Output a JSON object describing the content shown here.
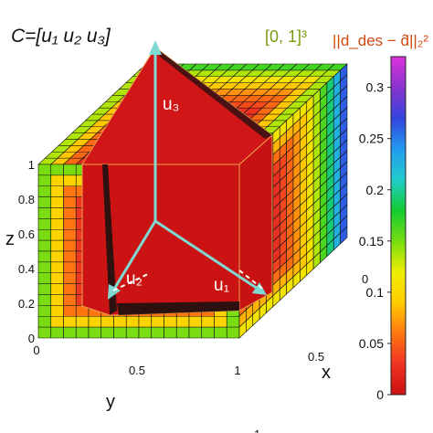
{
  "labels": {
    "matrix": "C=[u₁ u₂ u₃]",
    "domain": "[0, 1]³",
    "colorbar_title": "||d_des − d̂||₂²",
    "axis_z": "z",
    "axis_y": "y",
    "axis_x": "x",
    "vec_u1": "u₁",
    "vec_u2": "u₂",
    "vec_u3": "u₃"
  },
  "ticks": {
    "z": [
      "0",
      "0.2",
      "0.4",
      "0.6",
      "0.8",
      "1"
    ],
    "y": [
      "0",
      "0.5",
      "1"
    ],
    "x": [
      "0",
      "0.5",
      "1"
    ],
    "colorbar": [
      "0",
      "0.05",
      "0.1",
      "0.15",
      "0.2",
      "0.25",
      "0.3"
    ]
  },
  "colorbar": {
    "min": 0,
    "max": 0.33,
    "stops": [
      "#cc1111",
      "#ee3322",
      "#ff7711",
      "#ffcc00",
      "#eeee00",
      "#77dd11",
      "#11cc33",
      "#22cccc",
      "#2299ee",
      "#3344dd",
      "#8833cc",
      "#dd33dd"
    ]
  },
  "colors": {
    "vector": "#7fd9d2",
    "interior": "#cc1313",
    "edge": "#e8a050",
    "domain_label": "#7a9a10",
    "colorbar_title": "#d04a10"
  }
}
